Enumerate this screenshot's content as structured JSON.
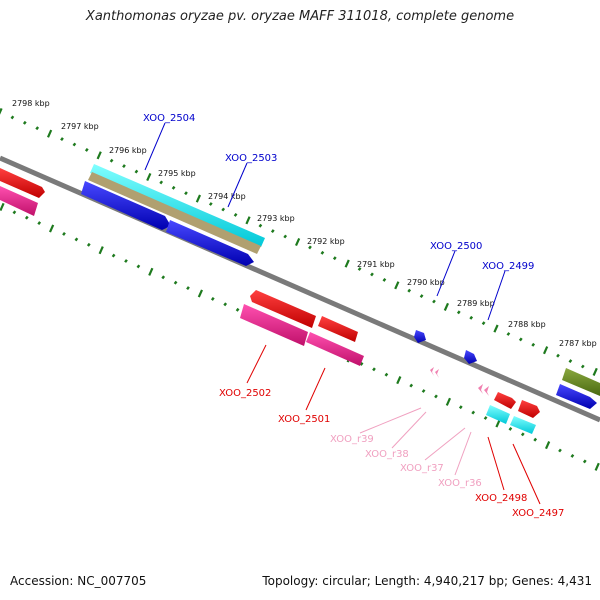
{
  "title": "Xanthomonas oryzae pv. oryzae MAFF 311018, complete genome",
  "accession_label": "Accession:",
  "accession": "NC_007705",
  "topology_label": "Topology:",
  "topology": "circular",
  "length_label": "Length:",
  "length": "4,940,217 bp",
  "genes_label": "Genes:",
  "genes": "4,431",
  "scale_labels": [
    "2798 kbp",
    "2797 kbp",
    "2796 kbp",
    "2795 kbp",
    "2794 kbp",
    "2793 kbp",
    "2792 kbp",
    "2791 kbp",
    "2790 kbp",
    "2789 kbp",
    "2788 kbp",
    "2787 kbp"
  ],
  "genes_forward_blue": [
    {
      "label": "XOO_2504",
      "color": "#0000cc"
    },
    {
      "label": "XOO_2503",
      "color": "#0000cc"
    },
    {
      "label": "XOO_2500",
      "color": "#0000cc"
    },
    {
      "label": "XOO_2499",
      "color": "#0000cc"
    }
  ],
  "genes_reverse": [
    {
      "label": "XOO_2502",
      "color": "#e00000"
    },
    {
      "label": "XOO_2501",
      "color": "#e00000"
    },
    {
      "label": "XOO_r39",
      "color": "#f0a0c0"
    },
    {
      "label": "XOO_r38",
      "color": "#f0a0c0"
    },
    {
      "label": "XOO_r37",
      "color": "#f0a0c0"
    },
    {
      "label": "XOO_r36",
      "color": "#f0a0c0"
    },
    {
      "label": "XOO_2498",
      "color": "#e00000"
    },
    {
      "label": "XOO_2497",
      "color": "#e00000"
    }
  ],
  "colors": {
    "backbone": "#7a7a7a",
    "tick": "#1e7a1e",
    "cds_forward": "#1010e0",
    "cds_reverse": "#e01010",
    "cds_pink": "#e0208a",
    "trna": "#f080b0",
    "rrna": "#00e0e0",
    "pseudo": "#b0a070",
    "olive": "#6b8e23"
  }
}
